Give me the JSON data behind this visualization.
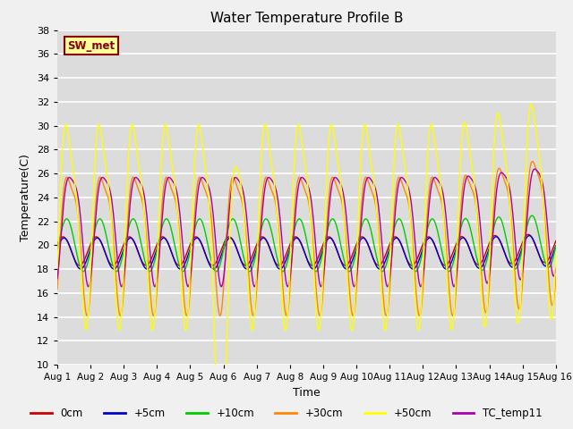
{
  "title": "Water Temperature Profile B",
  "xlabel": "Time",
  "ylabel": "Temperature(C)",
  "ylim": [
    10,
    38
  ],
  "xlim": [
    0,
    15
  ],
  "xtick_labels": [
    "Aug 1",
    "Aug 2",
    "Aug 3",
    "Aug 4",
    "Aug 5",
    "Aug 6",
    "Aug 7",
    "Aug 8",
    "Aug 9",
    "Aug 10",
    "Aug 11",
    "Aug 12",
    "Aug 13",
    "Aug 14",
    "Aug 15",
    "Aug 16"
  ],
  "ytick_vals": [
    10,
    12,
    14,
    16,
    18,
    20,
    22,
    24,
    26,
    28,
    30,
    32,
    34,
    36,
    38
  ],
  "colors": {
    "0cm": "#cc0000",
    "+5cm": "#0000cc",
    "+10cm": "#00cc00",
    "+30cm": "#ff8800",
    "+50cm": "#ffff00",
    "TC_temp11": "#aa00aa"
  },
  "legend_label": "SW_met",
  "legend_bg": "#ffff99",
  "legend_border": "#880000",
  "bg_color": "#dcdcdc",
  "fig_bg": "#f0f0f0"
}
